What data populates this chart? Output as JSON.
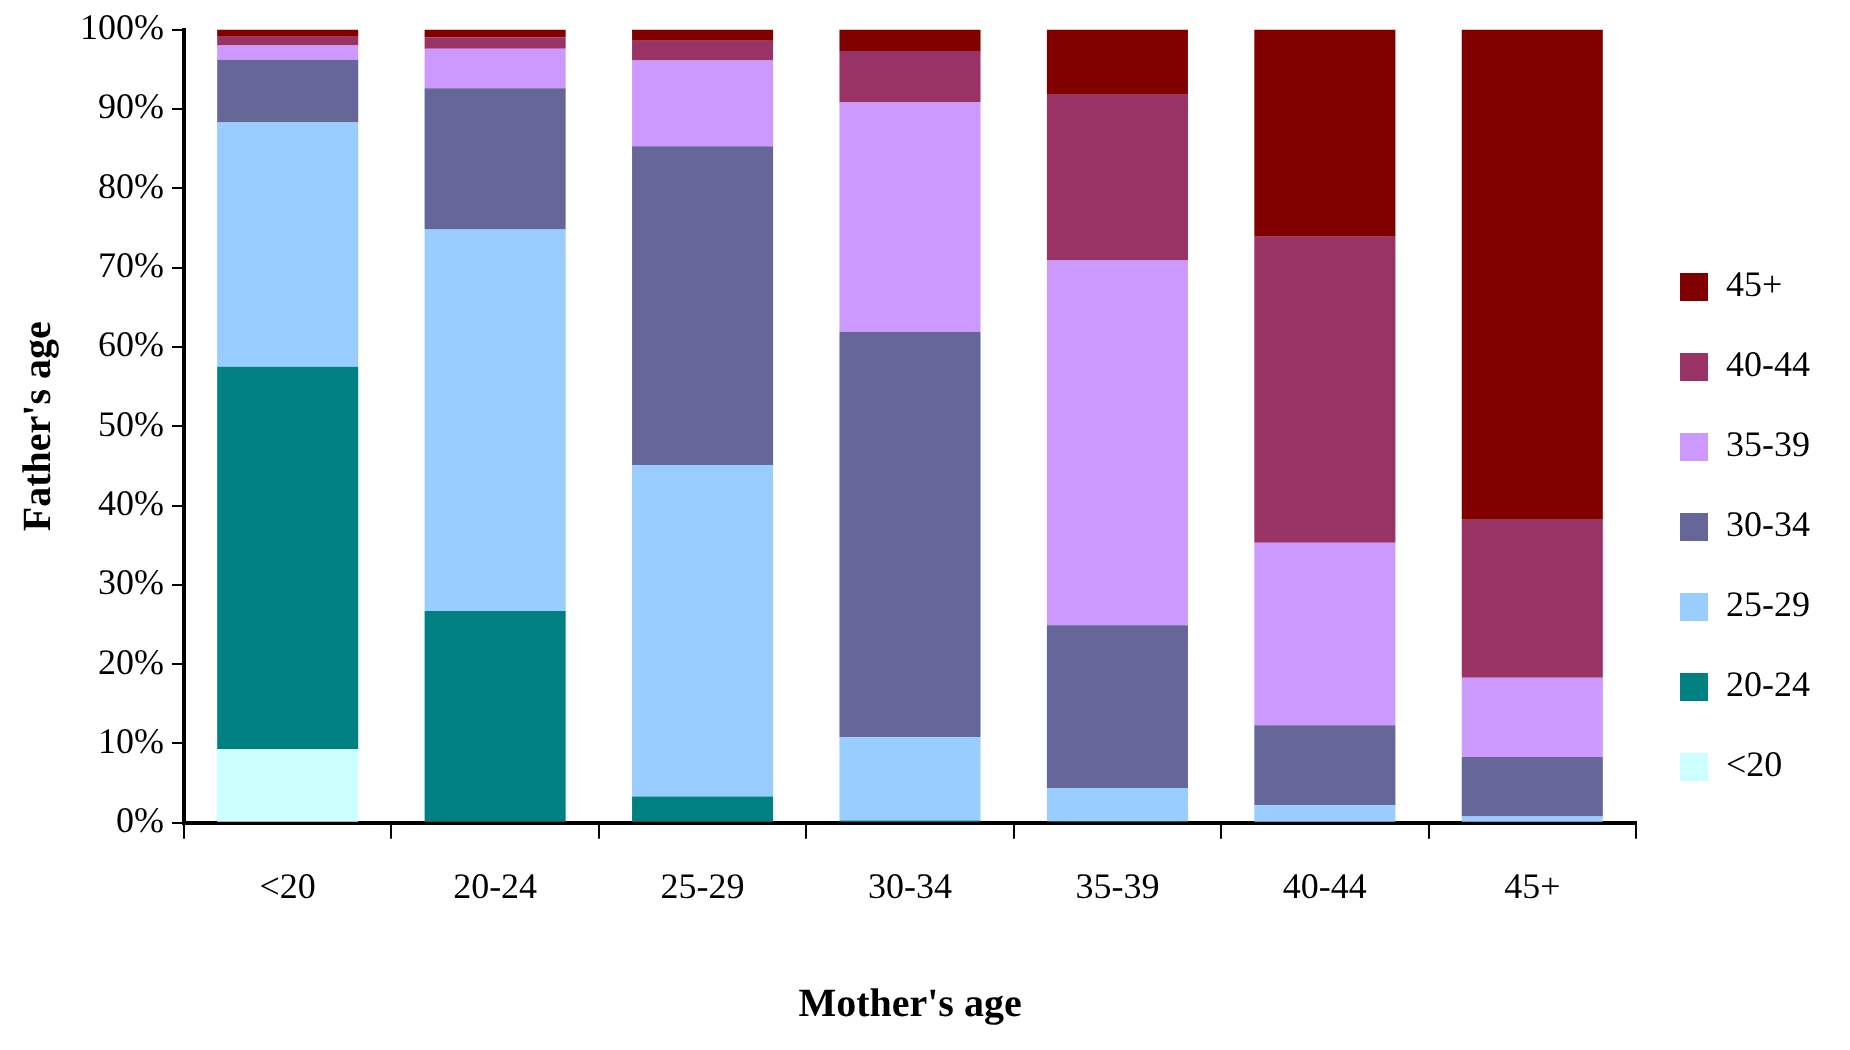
{
  "chart_data": {
    "type": "bar",
    "stacked": true,
    "xlabel": "Mother's age",
    "ylabel": "Father's age",
    "categories": [
      "<20",
      "20-24",
      "25-29",
      "30-34",
      "35-39",
      "40-44",
      "45+"
    ],
    "ylim": [
      0,
      100
    ],
    "yticks": [
      {
        "value": 0,
        "label": "0%"
      },
      {
        "value": 10,
        "label": "10%"
      },
      {
        "value": 20,
        "label": "20%"
      },
      {
        "value": 30,
        "label": "30%"
      },
      {
        "value": 40,
        "label": "40%"
      },
      {
        "value": 50,
        "label": "50%"
      },
      {
        "value": 60,
        "label": "60%"
      },
      {
        "value": 70,
        "label": "70%"
      },
      {
        "value": 80,
        "label": "80%"
      },
      {
        "value": 90,
        "label": "90%"
      },
      {
        "value": 100,
        "label": "100%"
      }
    ],
    "grid": false,
    "legend": "right",
    "series": [
      {
        "name": "<20",
        "color": "#ccffff",
        "values": [
          9.3,
          null,
          0,
          0,
          0,
          0,
          0
        ]
      },
      {
        "name": "20-24",
        "color": "#008080",
        "values": [
          48.2,
          26.7,
          3.3,
          0.3,
          0.2,
          null,
          0
        ]
      },
      {
        "name": "25-29",
        "color": "#99ccff",
        "values": [
          30.8,
          48.1,
          41.8,
          10.5,
          4.2,
          2.2,
          0.8
        ]
      },
      {
        "name": "30-34",
        "color": "#666699",
        "values": [
          7.9,
          17.8,
          40.2,
          51.1,
          20.5,
          10.1,
          7.5
        ]
      },
      {
        "name": "35-39",
        "color": "#cc99ff",
        "values": [
          1.8,
          5.0,
          10.8,
          28.9,
          46.0,
          23.0,
          10.0
        ]
      },
      {
        "name": "40-44",
        "color": "#993366",
        "values": [
          1.1,
          1.4,
          2.5,
          6.5,
          20.9,
          38.6,
          19.9
        ]
      },
      {
        "name": "45+",
        "color": "#800000",
        "values": [
          0.9,
          1.0,
          1.4,
          2.7,
          8.2,
          26.1,
          61.8
        ]
      }
    ]
  }
}
